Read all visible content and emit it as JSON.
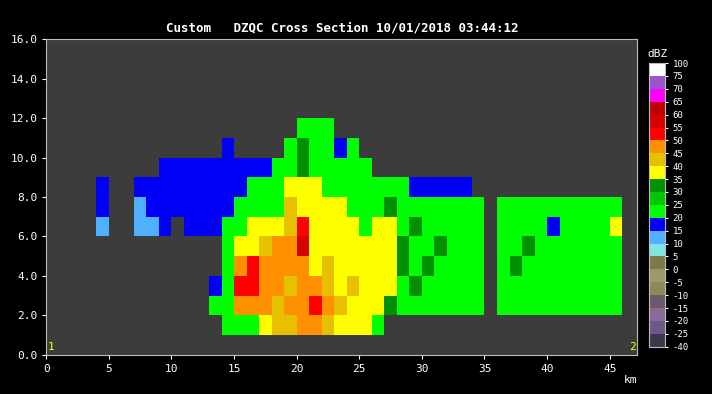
{
  "chart_data": {
    "type": "heatmap",
    "title": "Custom   DZQC Cross Section 10/01/2018 03:44:12",
    "x_label": "km",
    "xlim": [
      0,
      47.2
    ],
    "xticks": [
      0,
      5,
      10,
      15,
      20,
      25,
      30,
      35,
      40,
      45
    ],
    "ylim": [
      0,
      16
    ],
    "yticks": [
      {
        "value": 0,
        "label": "0.0"
      },
      {
        "value": 2,
        "label": "2.0"
      },
      {
        "value": 4,
        "label": "4.0"
      },
      {
        "value": 6,
        "label": "6.0"
      },
      {
        "value": 8,
        "label": "8.0"
      },
      {
        "value": 10,
        "label": "10.0"
      },
      {
        "value": 12,
        "label": "12.0"
      },
      {
        "value": 14,
        "label": "14.0"
      },
      {
        "value": 16,
        "label": "16.0"
      }
    ],
    "grid": false,
    "annotations": [
      "1",
      "2"
    ],
    "x_edges": [
      4,
      5,
      6,
      7,
      8,
      9,
      10,
      11,
      12,
      13,
      14,
      15,
      16,
      17,
      18,
      19,
      20,
      21,
      22,
      23,
      24,
      25,
      26,
      27,
      28,
      29,
      30,
      31,
      32,
      33,
      34,
      35,
      36,
      37,
      38,
      39,
      40,
      41,
      42,
      43,
      44,
      45,
      46
    ],
    "y_edges": [
      1,
      2,
      3,
      4,
      5,
      6,
      7,
      8,
      9,
      10,
      11,
      12
    ],
    "cells": [
      [
        null,
        null,
        null,
        null,
        null,
        null,
        null,
        null,
        null,
        null,
        22,
        22,
        22,
        37,
        42,
        42,
        47,
        47,
        42,
        37,
        37,
        37,
        22,
        null,
        null,
        null,
        null,
        null,
        null,
        null,
        null,
        null,
        null,
        null,
        null,
        null,
        null,
        null,
        null,
        null,
        null,
        null
      ],
      [
        null,
        null,
        null,
        null,
        null,
        null,
        null,
        null,
        null,
        22,
        22,
        47,
        47,
        47,
        42,
        47,
        47,
        52,
        47,
        42,
        37,
        37,
        37,
        32,
        22,
        22,
        22,
        22,
        22,
        22,
        22,
        null,
        22,
        22,
        22,
        22,
        22,
        22,
        22,
        22,
        22,
        22
      ],
      [
        null,
        null,
        null,
        null,
        null,
        null,
        null,
        null,
        null,
        17,
        22,
        52,
        52,
        47,
        47,
        42,
        47,
        47,
        42,
        37,
        42,
        37,
        37,
        37,
        22,
        32,
        22,
        22,
        22,
        22,
        22,
        null,
        22,
        22,
        22,
        22,
        22,
        22,
        22,
        22,
        22,
        22
      ],
      [
        null,
        null,
        null,
        null,
        null,
        null,
        null,
        null,
        null,
        null,
        22,
        47,
        52,
        47,
        47,
        47,
        47,
        37,
        42,
        37,
        37,
        37,
        37,
        37,
        32,
        22,
        32,
        22,
        22,
        22,
        22,
        null,
        22,
        32,
        22,
        22,
        22,
        22,
        22,
        22,
        22,
        22
      ],
      [
        null,
        null,
        null,
        null,
        null,
        null,
        null,
        null,
        null,
        null,
        22,
        37,
        37,
        42,
        47,
        47,
        57,
        37,
        37,
        37,
        37,
        37,
        37,
        37,
        32,
        22,
        22,
        32,
        22,
        22,
        22,
        null,
        22,
        22,
        32,
        22,
        22,
        22,
        22,
        22,
        22,
        22
      ],
      [
        12,
        null,
        null,
        12,
        12,
        17,
        null,
        17,
        17,
        17,
        22,
        22,
        37,
        37,
        37,
        42,
        52,
        37,
        37,
        37,
        37,
        22,
        37,
        37,
        22,
        32,
        22,
        22,
        22,
        22,
        22,
        null,
        22,
        22,
        22,
        22,
        17,
        22,
        22,
        22,
        22,
        37
      ],
      [
        17,
        null,
        null,
        12,
        17,
        17,
        17,
        17,
        17,
        17,
        17,
        22,
        22,
        22,
        22,
        42,
        37,
        37,
        37,
        37,
        22,
        22,
        22,
        32,
        22,
        22,
        22,
        22,
        22,
        22,
        22,
        null,
        22,
        22,
        22,
        22,
        22,
        22,
        22,
        22,
        22,
        22
      ],
      [
        17,
        null,
        null,
        17,
        17,
        17,
        17,
        17,
        17,
        17,
        17,
        17,
        22,
        22,
        22,
        37,
        37,
        37,
        22,
        22,
        22,
        22,
        22,
        22,
        22,
        17,
        17,
        17,
        17,
        17,
        null,
        null,
        null,
        null,
        null,
        null,
        null,
        null,
        null,
        null,
        null,
        null
      ],
      [
        null,
        null,
        null,
        null,
        null,
        17,
        17,
        17,
        17,
        17,
        17,
        17,
        17,
        17,
        22,
        22,
        32,
        22,
        22,
        22,
        22,
        22,
        null,
        null,
        null,
        null,
        null,
        null,
        null,
        null,
        null,
        null,
        null,
        null,
        null,
        null,
        null,
        null,
        null,
        null,
        null,
        null
      ],
      [
        null,
        null,
        null,
        null,
        null,
        null,
        null,
        null,
        null,
        null,
        17,
        null,
        null,
        null,
        null,
        22,
        32,
        22,
        22,
        17,
        22,
        null,
        null,
        null,
        null,
        null,
        null,
        null,
        null,
        null,
        null,
        null,
        null,
        null,
        null,
        null,
        null,
        null,
        null,
        null,
        null,
        null
      ],
      [
        null,
        null,
        null,
        null,
        null,
        null,
        null,
        null,
        null,
        null,
        null,
        null,
        null,
        null,
        null,
        null,
        22,
        22,
        22,
        null,
        null,
        null,
        null,
        null,
        null,
        null,
        null,
        null,
        null,
        null,
        null,
        null,
        null,
        null,
        null,
        null,
        null,
        null,
        null,
        null,
        null,
        null
      ]
    ],
    "colorbar": {
      "label": "dBZ",
      "bounds": [
        -40,
        -25,
        -20,
        -15,
        -10,
        -5,
        0,
        5,
        10,
        15,
        20,
        25,
        30,
        35,
        40,
        45,
        50,
        55,
        60,
        65,
        70,
        75,
        100
      ],
      "ticks": [
        -40,
        -25,
        -20,
        -15,
        -10,
        -5,
        0,
        5,
        10,
        15,
        20,
        25,
        30,
        35,
        40,
        45,
        50,
        55,
        60,
        65,
        70,
        75,
        100
      ],
      "colors": [
        "#3a3a4a",
        "#6a5a8a",
        "#8a6a9a",
        "#6a5a6a",
        "#8a8a5a",
        "#9a9a6a",
        "#7a7a4a",
        "#7fe5e5",
        "#4fb0ff",
        "#0000f6",
        "#00ff00",
        "#00c800",
        "#009000",
        "#ffff00",
        "#e7c000",
        "#ff9000",
        "#ff0000",
        "#d60000",
        "#c00000",
        "#ff00ff",
        "#9955c9",
        "#ffffff"
      ]
    }
  }
}
